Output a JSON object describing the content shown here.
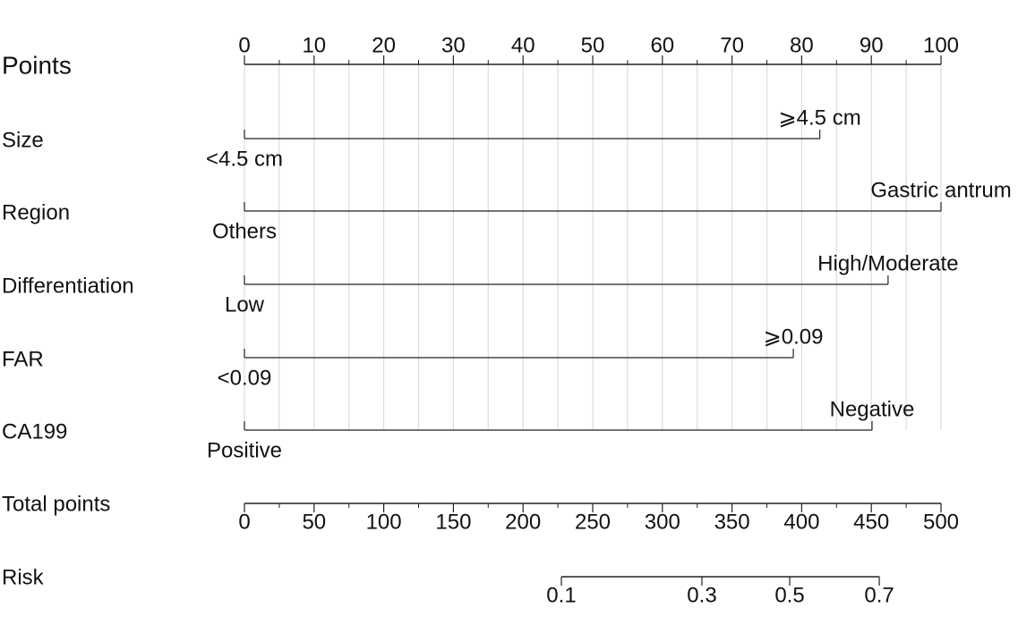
{
  "chart_data": {
    "type": "nomogram",
    "points": {
      "label": "Points",
      "xlim": [
        0,
        100
      ],
      "ticks": [
        0,
        10,
        20,
        30,
        40,
        50,
        60,
        70,
        80,
        90,
        100
      ],
      "minor_ticks": [
        5,
        15,
        25,
        35,
        45,
        55,
        65,
        75,
        85,
        95
      ]
    },
    "grid": true,
    "variables": [
      {
        "name": "Size",
        "levels": [
          {
            "label": "<4.5 cm",
            "value": 0
          },
          {
            "label": "⩾4.5 cm",
            "value": 82.6
          }
        ]
      },
      {
        "name": "Region",
        "levels": [
          {
            "label": "Others",
            "value": 0
          },
          {
            "label": "Gastric antrum",
            "value": 100
          }
        ]
      },
      {
        "name": "Differentiation",
        "levels": [
          {
            "label": "Low",
            "value": 0
          },
          {
            "label": "High/Moderate",
            "value": 92.4
          }
        ]
      },
      {
        "name": "FAR",
        "levels": [
          {
            "label": "<0.09",
            "value": 0
          },
          {
            "label": "⩾0.09",
            "value": 78.8
          }
        ]
      },
      {
        "name": "CA199",
        "levels": [
          {
            "label": "Positive",
            "value": 0
          },
          {
            "label": "Negative",
            "value": 90.1
          }
        ]
      }
    ],
    "total_points": {
      "label": "Total points",
      "xlim": [
        0,
        500
      ],
      "ticks": [
        0,
        50,
        100,
        150,
        200,
        250,
        300,
        350,
        400,
        450,
        500
      ],
      "minor_ticks": [
        25,
        75,
        125,
        175,
        225,
        275,
        325,
        375,
        425,
        475
      ]
    },
    "risk": {
      "label": "Risk",
      "ticks": [
        0.1,
        0.3,
        0.5,
        0.7
      ],
      "total_points": [
        227.5,
        328.4,
        391.4,
        455.7
      ]
    }
  }
}
